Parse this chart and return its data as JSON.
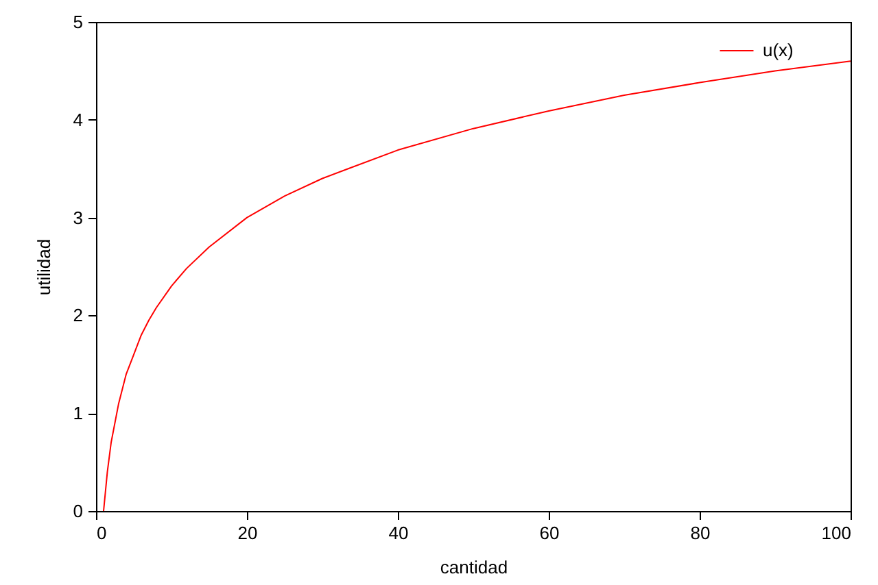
{
  "chart_data": {
    "type": "line",
    "xlabel": "cantidad",
    "ylabel": "utilidad",
    "series": [
      {
        "name": "u(x)",
        "color": "#ff0000",
        "x": [
          1,
          1.5,
          2,
          3,
          4,
          5,
          6,
          7,
          8,
          10,
          12,
          15,
          20,
          25,
          30,
          40,
          50,
          60,
          70,
          80,
          90,
          100
        ],
        "values": [
          0,
          0.4,
          0.7,
          1.1,
          1.4,
          1.6,
          1.8,
          1.95,
          2.08,
          2.3,
          2.48,
          2.7,
          3.0,
          3.22,
          3.4,
          3.69,
          3.91,
          4.09,
          4.25,
          4.38,
          4.5,
          4.6
        ]
      }
    ],
    "xlim": [
      0,
      100
    ],
    "xticks": [
      0,
      20,
      40,
      60,
      80,
      100
    ],
    "ylim": [
      0,
      5
    ],
    "yticks": [
      0,
      1,
      2,
      3,
      4,
      5
    ],
    "legend": "top right",
    "line_style": "solid",
    "marker": "none"
  }
}
